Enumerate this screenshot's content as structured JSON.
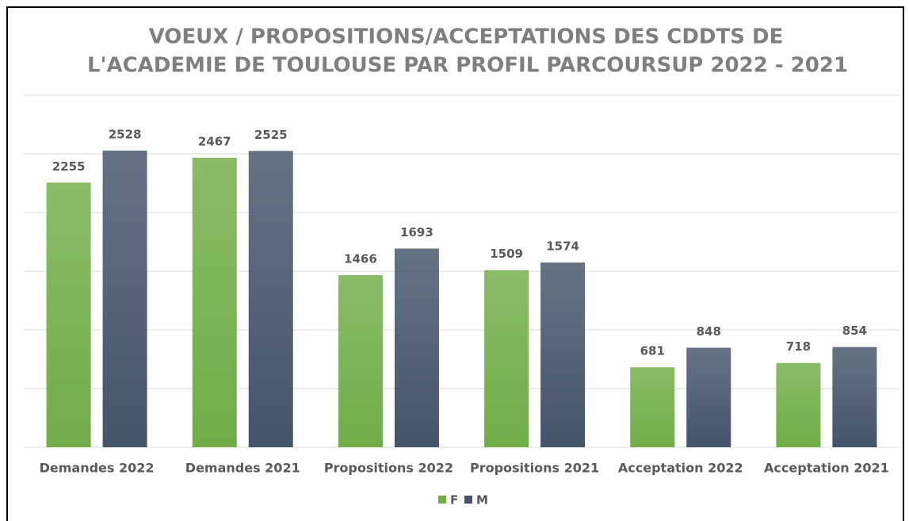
{
  "chart_data": {
    "type": "bar",
    "title": [
      "VOEUX / PROPOSITIONS/ACCEPTATIONS DES CDDTS DE",
      "L'ACADEMIE DE TOULOUSE PAR PROFIL PARCOURSUP 2022 - 2021"
    ],
    "categories": [
      "Demandes 2022",
      "Demandes 2021",
      "Propositions 2022",
      "Propositions 2021",
      "Acceptation 2022",
      "Acceptation 2021"
    ],
    "series": [
      {
        "name": "F",
        "color": "#70ad47",
        "values": [
          2255,
          2467,
          1466,
          1509,
          681,
          718
        ]
      },
      {
        "name": "M",
        "color": "#44546a",
        "values": [
          2528,
          2525,
          1693,
          1574,
          848,
          854
        ]
      }
    ],
    "ylim": [
      0,
      3000
    ],
    "yticks": [
      0,
      500,
      1000,
      1500,
      2000,
      2500,
      3000
    ],
    "grid": true,
    "legend": "bottom"
  }
}
